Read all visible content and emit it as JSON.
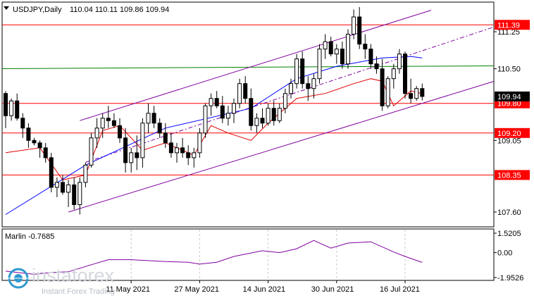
{
  "header": {
    "symbol_label": "USDJPY,Daily",
    "ohlc": "110.04 110.11 109.86 109.94"
  },
  "indicator": {
    "label": "Marlin -0.7685",
    "ticks": [
      "1.5205",
      "0.00",
      "-1.9526"
    ]
  },
  "watermark": {
    "brand": "instaforex",
    "tagline": "Instant Forex Trading"
  },
  "colors": {
    "background": "#ffffff",
    "level_line": "#ff0000",
    "level_tag": "#ff0000",
    "channel": "#8000a0",
    "ma_blue": "#0000ff",
    "ma_red": "#e00000",
    "ma_green": "#008000",
    "candle_bull": "#ffffff",
    "candle_bear": "#000000",
    "current_tag": "#000000"
  },
  "chart_data": {
    "type": "candlestick",
    "y_ticks": [
      "111.25",
      "110.50",
      "109.05",
      "107.60"
    ],
    "y_range": [
      107.3,
      111.85
    ],
    "x_labels": [
      "11 May 2021",
      "27 May 2021",
      "14 Jun 2021",
      "30 Jun 2021",
      "16 Jul 2021"
    ],
    "levels": [
      {
        "label": "111.39",
        "value": 111.39
      },
      {
        "label": "109.80",
        "value": 109.8
      },
      {
        "label": "109.20",
        "value": 109.2
      },
      {
        "label": "108.35",
        "value": 108.35
      }
    ],
    "current_price": {
      "label": "109.94",
      "value": 109.94
    },
    "ma_green_level": 110.56,
    "candles": [
      [
        110.0,
        110.05,
        109.3,
        109.55
      ],
      [
        109.55,
        109.9,
        109.45,
        109.85
      ],
      [
        109.85,
        110.0,
        109.45,
        109.5
      ],
      [
        109.5,
        109.6,
        109.1,
        109.3
      ],
      [
        109.3,
        109.4,
        108.9,
        109.05
      ],
      [
        109.05,
        109.1,
        108.95,
        109.0
      ],
      [
        109.0,
        109.05,
        108.7,
        108.9
      ],
      [
        108.9,
        109.0,
        108.6,
        108.7
      ],
      [
        108.7,
        108.8,
        108.0,
        108.1
      ],
      [
        108.1,
        108.3,
        107.9,
        108.2
      ],
      [
        108.2,
        108.35,
        107.95,
        108.0
      ],
      [
        108.0,
        108.25,
        107.7,
        108.15
      ],
      [
        108.15,
        108.3,
        107.65,
        107.75
      ],
      [
        107.75,
        108.3,
        107.55,
        108.2
      ],
      [
        108.2,
        108.6,
        108.1,
        108.55
      ],
      [
        108.55,
        109.2,
        108.5,
        109.1
      ],
      [
        109.1,
        109.5,
        108.9,
        109.3
      ],
      [
        109.3,
        109.6,
        109.1,
        109.5
      ],
      [
        109.5,
        109.75,
        109.3,
        109.45
      ],
      [
        109.45,
        109.6,
        109.3,
        109.35
      ],
      [
        109.35,
        109.5,
        109.0,
        109.1
      ],
      [
        109.1,
        109.3,
        108.4,
        108.6
      ],
      [
        108.6,
        108.9,
        108.4,
        108.8
      ],
      [
        108.8,
        109.15,
        108.45,
        108.7
      ],
      [
        108.7,
        109.5,
        108.5,
        109.4
      ],
      [
        109.4,
        109.8,
        109.2,
        109.6
      ],
      [
        109.6,
        109.75,
        109.3,
        109.4
      ],
      [
        109.4,
        109.5,
        109.1,
        109.2
      ],
      [
        109.2,
        109.4,
        108.9,
        109.0
      ],
      [
        109.0,
        109.2,
        108.7,
        108.8
      ],
      [
        108.8,
        109.0,
        108.6,
        108.9
      ],
      [
        108.9,
        109.1,
        108.7,
        108.8
      ],
      [
        108.8,
        108.95,
        108.55,
        108.7
      ],
      [
        108.7,
        108.9,
        108.5,
        108.8
      ],
      [
        108.8,
        109.3,
        108.7,
        109.2
      ],
      [
        109.2,
        109.8,
        109.1,
        109.75
      ],
      [
        109.75,
        110.0,
        109.55,
        109.9
      ],
      [
        109.9,
        110.05,
        109.7,
        109.75
      ],
      [
        109.75,
        109.95,
        109.4,
        109.5
      ],
      [
        109.5,
        109.75,
        109.35,
        109.6
      ],
      [
        109.6,
        109.9,
        109.4,
        109.8
      ],
      [
        109.8,
        110.3,
        109.7,
        110.2
      ],
      [
        110.2,
        110.35,
        109.8,
        109.9
      ],
      [
        109.9,
        110.1,
        109.25,
        109.35
      ],
      [
        109.35,
        109.6,
        109.2,
        109.5
      ],
      [
        109.5,
        109.7,
        109.3,
        109.4
      ],
      [
        109.4,
        109.8,
        109.35,
        109.7
      ],
      [
        109.7,
        109.85,
        109.35,
        109.45
      ],
      [
        109.45,
        109.8,
        109.4,
        109.7
      ],
      [
        109.7,
        110.1,
        109.6,
        110.0
      ],
      [
        110.0,
        110.3,
        109.9,
        110.2
      ],
      [
        110.2,
        110.8,
        110.1,
        110.7
      ],
      [
        110.7,
        110.85,
        110.1,
        110.2
      ],
      [
        110.2,
        110.35,
        109.85,
        110.1
      ],
      [
        110.1,
        110.4,
        109.9,
        110.3
      ],
      [
        110.3,
        111.0,
        110.2,
        110.9
      ],
      [
        110.9,
        111.2,
        110.7,
        111.05
      ],
      [
        111.05,
        111.15,
        110.75,
        110.8
      ],
      [
        110.8,
        111.0,
        110.6,
        110.9
      ],
      [
        110.9,
        111.05,
        110.5,
        110.6
      ],
      [
        110.6,
        111.3,
        110.5,
        111.2
      ],
      [
        111.2,
        111.7,
        111.1,
        111.55
      ],
      [
        111.55,
        111.75,
        110.9,
        111.0
      ],
      [
        111.0,
        111.2,
        110.7,
        110.9
      ],
      [
        110.9,
        111.0,
        110.5,
        110.6
      ],
      [
        110.6,
        110.75,
        110.4,
        110.5
      ],
      [
        110.5,
        110.7,
        109.65,
        109.75
      ],
      [
        109.75,
        110.35,
        109.7,
        110.3
      ],
      [
        110.3,
        110.6,
        110.1,
        110.5
      ],
      [
        110.5,
        110.9,
        110.4,
        110.8
      ],
      [
        110.8,
        110.85,
        109.9,
        110.0
      ],
      [
        110.0,
        110.3,
        109.8,
        109.9
      ],
      [
        109.9,
        110.15,
        109.85,
        110.1
      ],
      [
        110.1,
        110.2,
        109.86,
        109.94
      ]
    ],
    "ma_blue": [
      [
        0,
        107.55
      ],
      [
        14,
        108.55
      ],
      [
        28,
        109.3
      ],
      [
        43,
        109.7
      ],
      [
        51,
        110.3
      ],
      [
        58,
        110.55
      ],
      [
        66,
        110.72
      ],
      [
        71,
        110.75
      ],
      [
        73,
        110.72
      ]
    ],
    "ma_red": [
      [
        0,
        108.8
      ],
      [
        6,
        108.9
      ],
      [
        10,
        108.25
      ],
      [
        14,
        108.35
      ],
      [
        17,
        109.25
      ],
      [
        20,
        109.35
      ],
      [
        24,
        108.85
      ],
      [
        28,
        109.0
      ],
      [
        33,
        108.75
      ],
      [
        36,
        109.35
      ],
      [
        39,
        109.2
      ],
      [
        43,
        109.05
      ],
      [
        46,
        109.4
      ],
      [
        51,
        109.9
      ],
      [
        56,
        110.0
      ],
      [
        61,
        110.2
      ],
      [
        64,
        110.3
      ],
      [
        66,
        110.25
      ],
      [
        68,
        109.75
      ],
      [
        71,
        110.05
      ],
      [
        73,
        110.0
      ]
    ],
    "marlin": [
      [
        0,
        -1.45
      ],
      [
        5,
        -1.7
      ],
      [
        8,
        -1.55
      ],
      [
        11,
        -1.5
      ],
      [
        15,
        -0.95
      ],
      [
        18,
        -0.55
      ],
      [
        22,
        -0.55
      ],
      [
        26,
        -0.65
      ],
      [
        28,
        -0.7
      ],
      [
        32,
        -0.75
      ],
      [
        34,
        -0.9
      ],
      [
        37,
        -0.75
      ],
      [
        40,
        -0.3
      ],
      [
        45,
        0.15
      ],
      [
        48,
        0.0
      ],
      [
        51,
        0.3
      ],
      [
        54,
        0.95
      ],
      [
        57,
        0.35
      ],
      [
        60,
        0.75
      ],
      [
        64,
        0.85
      ],
      [
        68,
        0.05
      ],
      [
        70,
        -0.3
      ],
      [
        73,
        -0.7685
      ]
    ]
  }
}
